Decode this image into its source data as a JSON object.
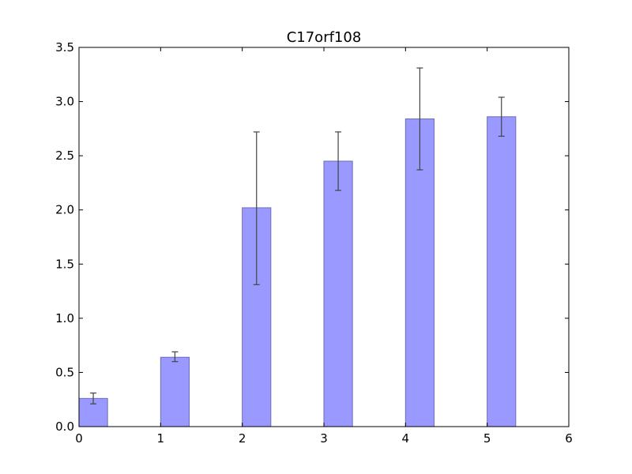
{
  "chart_data": {
    "type": "bar",
    "title": "C17orf108",
    "xlabel": "",
    "ylabel": "",
    "x": [
      0,
      1,
      2,
      3,
      4,
      5
    ],
    "values": [
      0.26,
      0.64,
      2.02,
      2.45,
      2.84,
      2.86
    ],
    "errors": [
      [
        0.21,
        0.31
      ],
      [
        0.6,
        0.69
      ],
      [
        1.31,
        2.72
      ],
      [
        2.18,
        2.72
      ],
      [
        2.37,
        3.31
      ],
      [
        2.68,
        3.04
      ]
    ],
    "bar_width": 0.35,
    "xlim": [
      0,
      6
    ],
    "ylim": [
      0,
      3.5
    ],
    "xticks": [
      "0",
      "1",
      "2",
      "3",
      "4",
      "5",
      "6"
    ],
    "yticks": [
      "0.0",
      "0.5",
      "1.0",
      "1.5",
      "2.0",
      "2.5",
      "3.0",
      "3.5"
    ],
    "grid": false,
    "bar_color": "#9999ff",
    "bar_edge_color": "#6c6cb8",
    "error_color": "#444444"
  }
}
